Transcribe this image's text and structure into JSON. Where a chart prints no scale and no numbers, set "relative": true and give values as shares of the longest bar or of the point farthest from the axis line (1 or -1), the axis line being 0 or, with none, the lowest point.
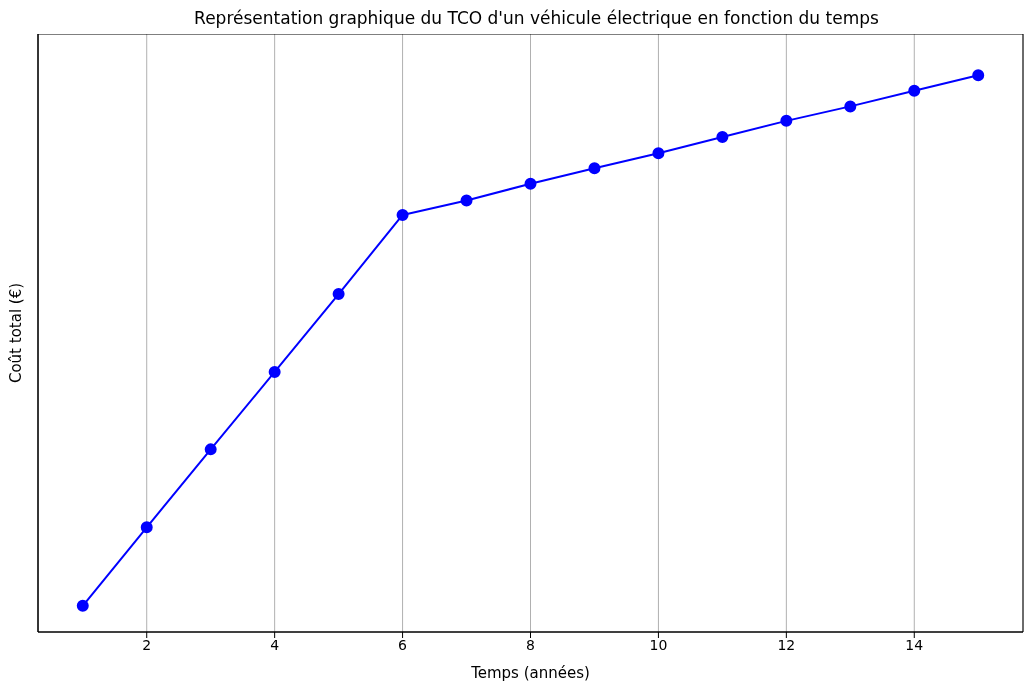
{
  "chart_data": {
    "type": "line",
    "title": "Représentation graphique du TCO d'un véhicule électrique en fonction du temps",
    "xlabel": "Temps (années)",
    "ylabel": "Coût total (€)",
    "relative": true,
    "x": [
      1,
      2,
      3,
      4,
      5,
      6,
      7,
      8,
      9,
      10,
      11,
      12,
      13,
      14,
      15
    ],
    "series": [
      {
        "color": "#0000ff",
        "values": [
          0.047,
          0.188,
          0.328,
          0.467,
          0.607,
          0.749,
          0.775,
          0.805,
          0.833,
          0.86,
          0.889,
          0.918,
          0.944,
          0.972,
          1
        ]
      }
    ],
    "xlim": [
      0.3,
      15.7
    ],
    "xticks": [
      2,
      4,
      6,
      8,
      10,
      12,
      14
    ],
    "grid": "x",
    "marker": "circle",
    "line_style": "solid"
  }
}
